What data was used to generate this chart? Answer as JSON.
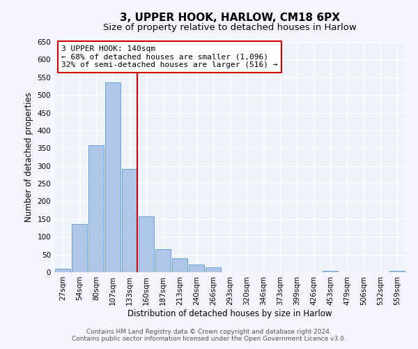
{
  "title": "3, UPPER HOOK, HARLOW, CM18 6PX",
  "subtitle": "Size of property relative to detached houses in Harlow",
  "xlabel": "Distribution of detached houses by size in Harlow",
  "ylabel": "Number of detached properties",
  "bar_labels": [
    "27sqm",
    "54sqm",
    "80sqm",
    "107sqm",
    "133sqm",
    "160sqm",
    "187sqm",
    "213sqm",
    "240sqm",
    "266sqm",
    "293sqm",
    "320sqm",
    "346sqm",
    "373sqm",
    "399sqm",
    "426sqm",
    "453sqm",
    "479sqm",
    "506sqm",
    "532sqm",
    "559sqm"
  ],
  "bar_values": [
    10,
    136,
    358,
    535,
    291,
    157,
    65,
    40,
    21,
    14,
    0,
    0,
    0,
    0,
    0,
    0,
    3,
    0,
    0,
    0,
    3
  ],
  "bar_color": "#aec6e8",
  "bar_edge_color": "#5b9bd5",
  "vline_color": "#cc0000",
  "ylim": [
    0,
    650
  ],
  "yticks": [
    0,
    50,
    100,
    150,
    200,
    250,
    300,
    350,
    400,
    450,
    500,
    550,
    600,
    650
  ],
  "annotation_title": "3 UPPER HOOK: 140sqm",
  "annotation_line1": "← 68% of detached houses are smaller (1,096)",
  "annotation_line2": "32% of semi-detached houses are larger (516) →",
  "annotation_box_color": "#ffffff",
  "annotation_box_edge": "#cc0000",
  "footer_line1": "Contains HM Land Registry data © Crown copyright and database right 2024.",
  "footer_line2": "Contains public sector information licensed under the Open Government Licence v3.0.",
  "bg_color": "#eef2f9",
  "grid_color": "#ffffff",
  "fig_bg_color": "#f5f5ff",
  "title_fontsize": 11,
  "subtitle_fontsize": 9.5,
  "axis_label_fontsize": 8.5,
  "tick_fontsize": 7.5,
  "annotation_fontsize": 8,
  "footer_fontsize": 6.5
}
